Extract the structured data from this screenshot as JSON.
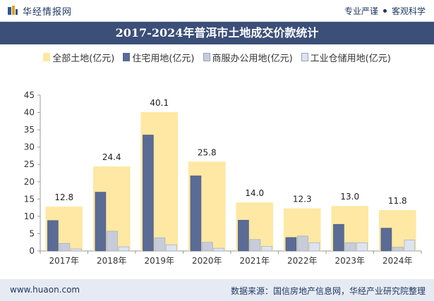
{
  "header": {
    "brand": "华经情报网",
    "slogan_left": "专业严谨",
    "slogan_right": "客观科学"
  },
  "footer": {
    "site": "www.huaon.com",
    "source": "数据来源：国信房地产信息网，华经产业研究院整理"
  },
  "colors": {
    "total": "#ffe8a3",
    "residential": "#5a6b95",
    "commercial": "#c6ccda",
    "industrial": "#dde3ef",
    "title_bg": "#3b4f78"
  },
  "chart_data": {
    "type": "bar",
    "title": "2017-2024年普洱市土地成交价款统计",
    "xlabel": "",
    "ylabel": "",
    "ylim": [
      0,
      45
    ],
    "yticks": [
      0,
      5,
      10,
      15,
      20,
      25,
      30,
      35,
      40,
      45
    ],
    "categories": [
      "2017年",
      "2018年",
      "2019年",
      "2020年",
      "2021年",
      "2022年",
      "2023年",
      "2024年"
    ],
    "legend_position": "top",
    "grid": false,
    "series": [
      {
        "name": "全部土地(亿元)",
        "values": [
          12.8,
          24.4,
          40.1,
          25.8,
          14.0,
          12.3,
          13.0,
          11.8
        ]
      },
      {
        "name": "住宅用地(亿元)",
        "values": [
          8.8,
          17.0,
          33.5,
          21.7,
          8.9,
          3.9,
          7.7,
          6.6
        ]
      },
      {
        "name": "商服办公用地(亿元)",
        "values": [
          2.2,
          5.7,
          3.8,
          2.5,
          3.3,
          4.3,
          2.4,
          1.1
        ]
      },
      {
        "name": "工业仓储用地(亿元)",
        "values": [
          0.6,
          1.2,
          1.8,
          0.8,
          1.3,
          2.4,
          2.4,
          3.2
        ]
      }
    ],
    "data_labels": [
      "12.8",
      "24.4",
      "40.1",
      "25.8",
      "14.0",
      "12.3",
      "13.0",
      "11.8"
    ]
  }
}
